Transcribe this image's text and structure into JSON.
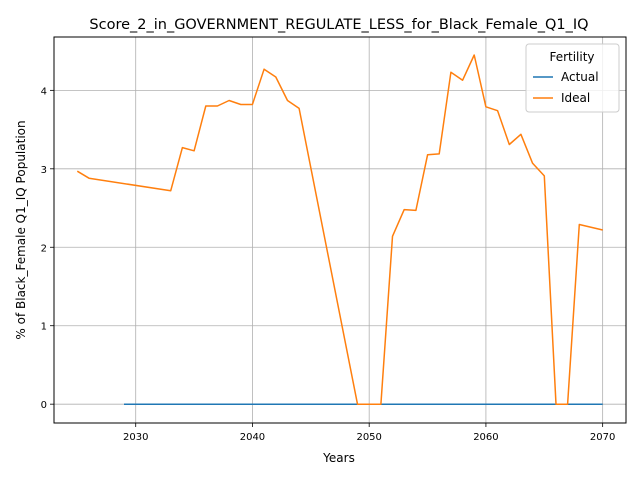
{
  "chart_data": {
    "type": "line",
    "title": "Score_2_in_GOVERNMENT_REGULATE_LESS_for_Black_Female_Q1_IQ",
    "xlabel": "Years",
    "ylabel": "% of Black_Female Q1_IQ Population",
    "xlim": [
      2023,
      2072
    ],
    "ylim": [
      -0.24,
      4.68
    ],
    "xticks": [
      2030,
      2040,
      2050,
      2060,
      2070
    ],
    "yticks": [
      0,
      1,
      2,
      3,
      4
    ],
    "grid": true,
    "legend": {
      "title": "Fertility",
      "placement": "top-right"
    },
    "series": [
      {
        "name": "Actual",
        "color": "#1f77b4",
        "points": [
          [
            2029,
            0
          ],
          [
            2070,
            0
          ]
        ]
      },
      {
        "name": "Ideal",
        "color": "#ff7f0e",
        "points": [
          [
            2025,
            2.97
          ],
          [
            2026,
            2.88
          ],
          [
            2033,
            2.72
          ],
          [
            2034,
            3.27
          ],
          [
            2035,
            3.23
          ],
          [
            2036,
            3.8
          ],
          [
            2037,
            3.8
          ],
          [
            2038,
            3.87
          ],
          [
            2039,
            3.82
          ],
          [
            2040,
            3.82
          ],
          [
            2041,
            4.27
          ],
          [
            2042,
            4.17
          ],
          [
            2043,
            3.87
          ],
          [
            2044,
            3.77
          ],
          [
            2049,
            0.0
          ],
          [
            2051,
            0.0
          ],
          [
            2052,
            2.14
          ],
          [
            2053,
            2.48
          ],
          [
            2054,
            2.47
          ],
          [
            2055,
            3.18
          ],
          [
            2056,
            3.19
          ],
          [
            2057,
            4.23
          ],
          [
            2058,
            4.13
          ],
          [
            2059,
            4.45
          ],
          [
            2060,
            3.79
          ],
          [
            2061,
            3.74
          ],
          [
            2062,
            3.31
          ],
          [
            2063,
            3.44
          ],
          [
            2064,
            3.07
          ],
          [
            2065,
            2.91
          ],
          [
            2066,
            0.0
          ],
          [
            2067,
            0.0
          ],
          [
            2068,
            2.29
          ],
          [
            2070,
            2.22
          ]
        ]
      }
    ]
  }
}
